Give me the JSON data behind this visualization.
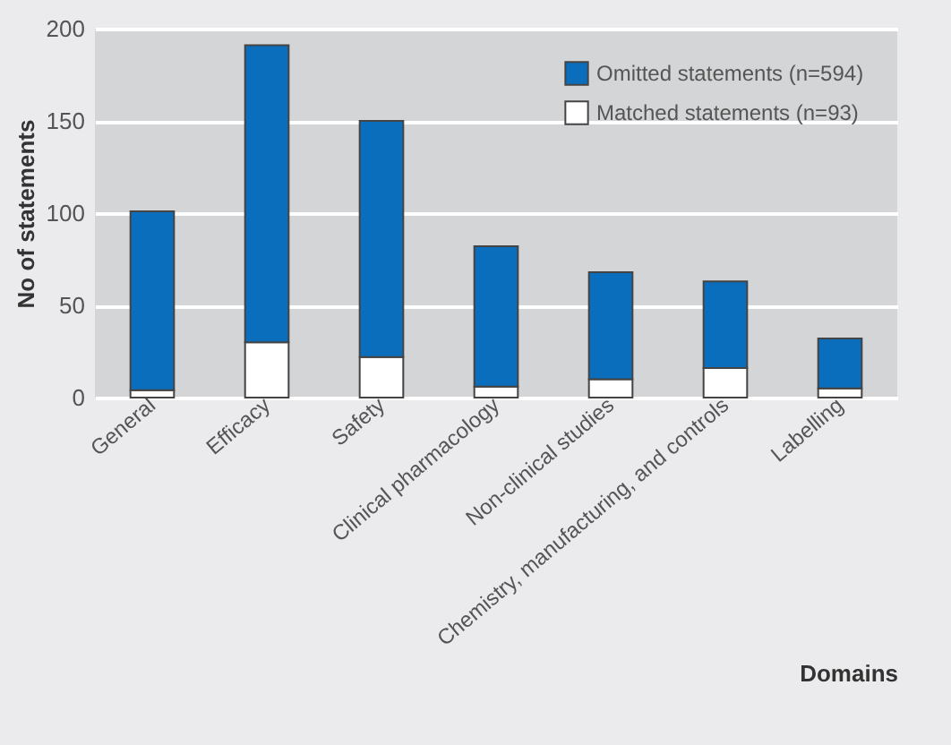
{
  "chart_data": {
    "type": "bar",
    "stacked": true,
    "xlabel": "Domains",
    "ylabel": "No of statements",
    "categories": [
      "General",
      "Efficacy",
      "Safety",
      "Clinical pharmacology",
      "Non-clinical studies",
      "Chemistry, manufacturing, and controls",
      "Labelling"
    ],
    "series": [
      {
        "name": "Matched statements (n=93)",
        "color": "#ffffff",
        "values": [
          4,
          30,
          22,
          6,
          10,
          16,
          5
        ]
      },
      {
        "name": "Omitted statements (n=594)",
        "color": "#0a6ebd",
        "values": [
          97,
          161,
          128,
          76,
          58,
          47,
          27
        ]
      }
    ],
    "ylim": [
      0,
      200
    ],
    "yticks": [
      0,
      50,
      100,
      150,
      200
    ],
    "grid": "y",
    "legend": "top right"
  }
}
